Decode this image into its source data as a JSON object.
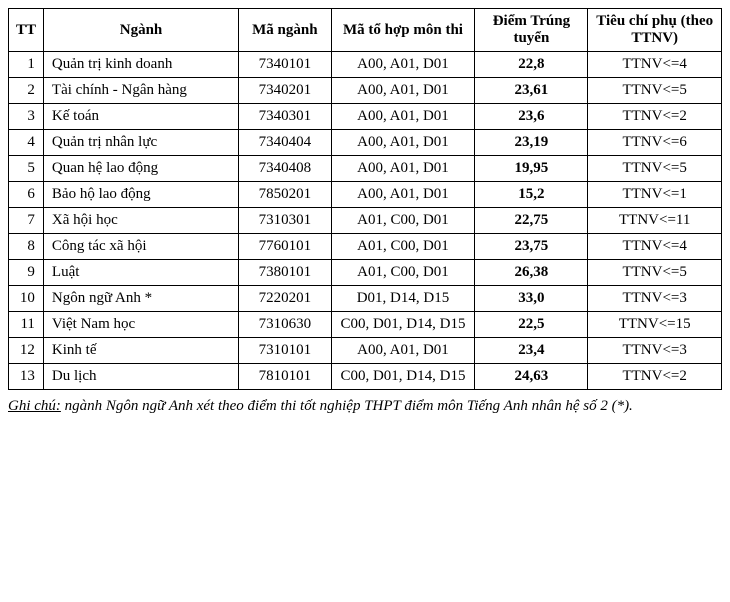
{
  "table": {
    "headers": {
      "tt": "TT",
      "nganh": "Ngành",
      "ma": "Mã ngành",
      "tohop": "Mã tổ hợp môn thi",
      "diem": "Điểm Trúng tuyển",
      "ttnv": "Tiêu chí phụ (theo TTNV)"
    },
    "rows": [
      {
        "tt": "1",
        "nganh": "Quản trị kinh doanh",
        "ma": "7340101",
        "tohop": "A00, A01, D01",
        "diem": "22,8",
        "ttnv": "TTNV<=4"
      },
      {
        "tt": "2",
        "nganh": "Tài chính - Ngân hàng",
        "ma": "7340201",
        "tohop": "A00, A01, D01",
        "diem": "23,61",
        "ttnv": "TTNV<=5"
      },
      {
        "tt": "3",
        "nganh": "Kế toán",
        "ma": "7340301",
        "tohop": "A00, A01, D01",
        "diem": "23,6",
        "ttnv": "TTNV<=2"
      },
      {
        "tt": "4",
        "nganh": "Quản trị nhân lực",
        "ma": "7340404",
        "tohop": "A00, A01, D01",
        "diem": "23,19",
        "ttnv": "TTNV<=6"
      },
      {
        "tt": "5",
        "nganh": "Quan hệ lao động",
        "ma": "7340408",
        "tohop": "A00, A01, D01",
        "diem": "19,95",
        "ttnv": "TTNV<=5"
      },
      {
        "tt": "6",
        "nganh": "Bảo hộ lao động",
        "ma": "7850201",
        "tohop": "A00, A01, D01",
        "diem": "15,2",
        "ttnv": "TTNV<=1"
      },
      {
        "tt": "7",
        "nganh": "Xã hội học",
        "ma": "7310301",
        "tohop": "A01, C00, D01",
        "diem": "22,75",
        "ttnv": "TTNV<=11"
      },
      {
        "tt": "8",
        "nganh": "Công tác xã hội",
        "ma": "7760101",
        "tohop": "A01, C00, D01",
        "diem": "23,75",
        "ttnv": "TTNV<=4"
      },
      {
        "tt": "9",
        "nganh": "Luật",
        "ma": "7380101",
        "tohop": "A01, C00, D01",
        "diem": "26,38",
        "ttnv": "TTNV<=5"
      },
      {
        "tt": "10",
        "nganh": "Ngôn ngữ Anh *",
        "ma": "7220201",
        "tohop": "D01, D14, D15",
        "diem": "33,0",
        "ttnv": "TTNV<=3"
      },
      {
        "tt": "11",
        "nganh": "Việt Nam học",
        "ma": "7310630",
        "tohop": "C00, D01, D14, D15",
        "diem": "22,5",
        "ttnv": "TTNV<=15"
      },
      {
        "tt": "12",
        "nganh": "Kinh tế",
        "ma": "7310101",
        "tohop": "A00, A01, D01",
        "diem": "23,4",
        "ttnv": "TTNV<=3"
      },
      {
        "tt": "13",
        "nganh": "Du lịch",
        "ma": "7810101",
        "tohop": "C00, D01, D14, D15",
        "diem": "24,63",
        "ttnv": "TTNV<=2"
      }
    ]
  },
  "footnote": {
    "lead": "Ghi chú:",
    "text": " ngành Ngôn ngữ Anh xét theo điểm thi tốt nghiệp THPT điểm môn Tiếng Anh nhân hệ số 2 (*)."
  }
}
